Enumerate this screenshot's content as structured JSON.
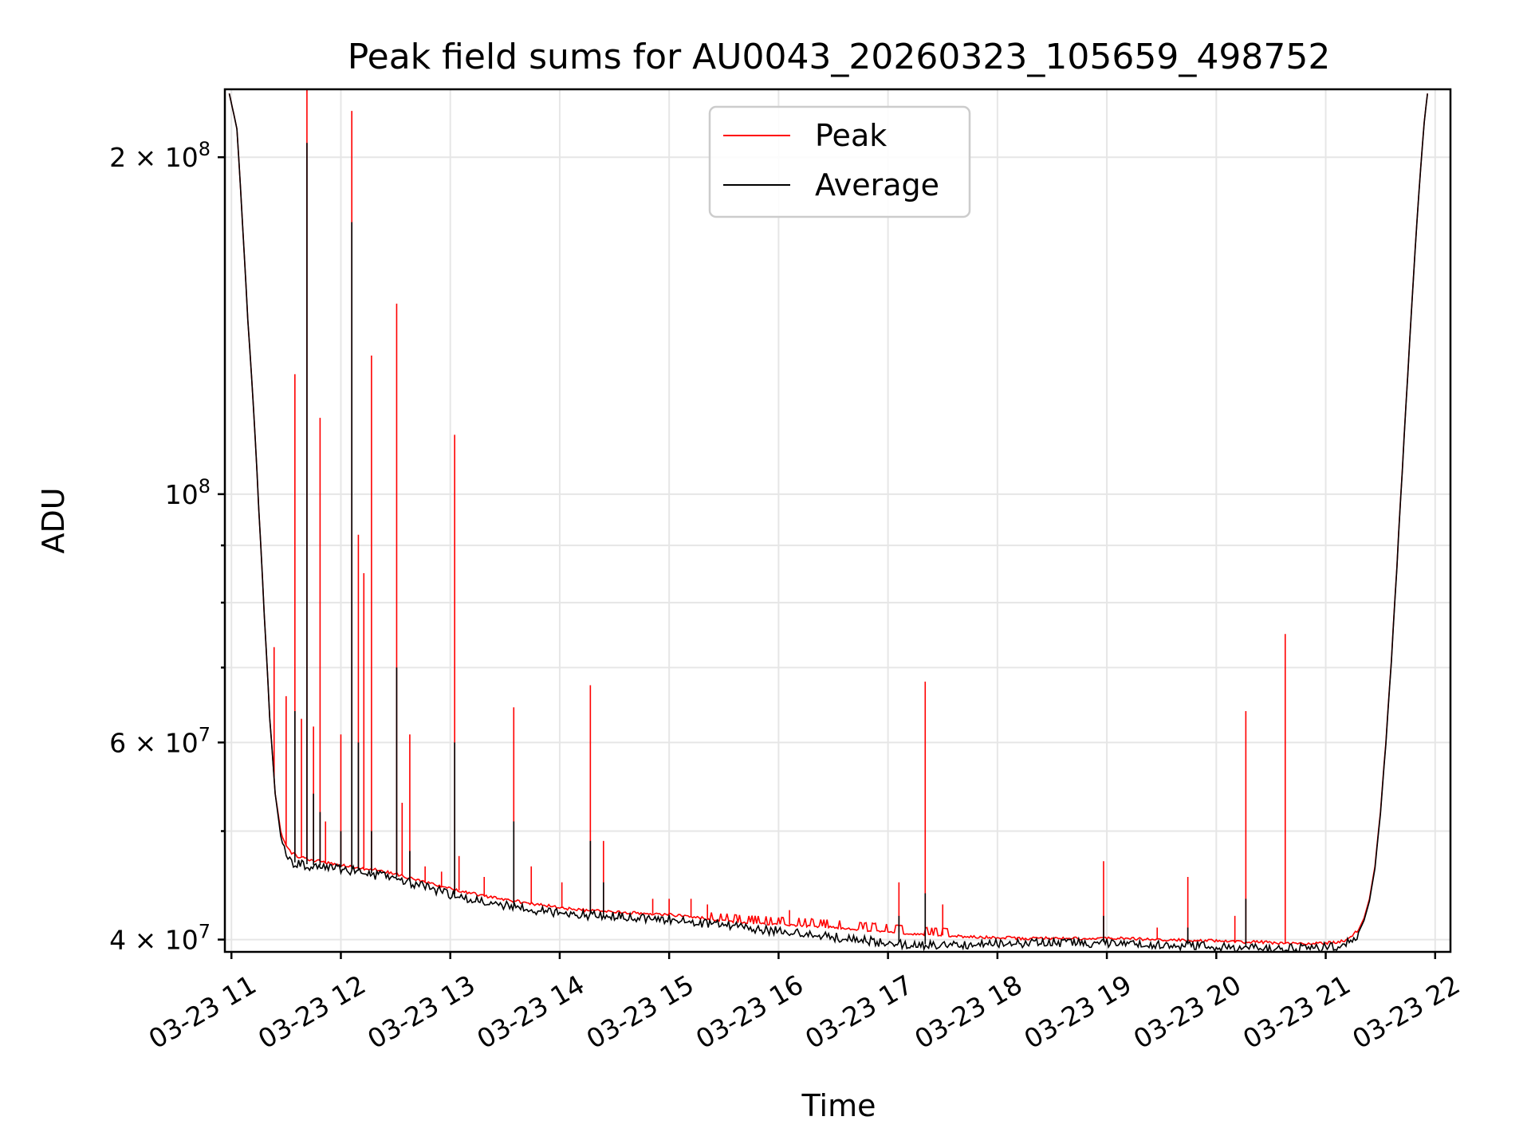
{
  "chart_data": {
    "type": "line",
    "title": "Peak field sums for AU0043_20260323_105659_498752",
    "xlabel": "Time",
    "ylabel": "ADU",
    "y_scale": "log",
    "ylim": [
      39000000,
      230000000
    ],
    "xlim_hours": [
      10.94,
      22.14
    ],
    "x_ticks": [
      {
        "hour": 11,
        "label": "03-23 11"
      },
      {
        "hour": 12,
        "label": "03-23 12"
      },
      {
        "hour": 13,
        "label": "03-23 13"
      },
      {
        "hour": 14,
        "label": "03-23 14"
      },
      {
        "hour": 15,
        "label": "03-23 15"
      },
      {
        "hour": 16,
        "label": "03-23 16"
      },
      {
        "hour": 17,
        "label": "03-23 17"
      },
      {
        "hour": 18,
        "label": "03-23 18"
      },
      {
        "hour": 19,
        "label": "03-23 19"
      },
      {
        "hour": 20,
        "label": "03-23 20"
      },
      {
        "hour": 21,
        "label": "03-23 21"
      },
      {
        "hour": 22,
        "label": "03-23 22"
      }
    ],
    "y_major_ticks": [
      {
        "value": 40000000,
        "mantissa": "4",
        "sep": " × ",
        "base": "10",
        "exp": "7"
      },
      {
        "value": 60000000,
        "mantissa": "6",
        "sep": " × ",
        "base": "10",
        "exp": "7"
      },
      {
        "value": 100000000,
        "mantissa": "",
        "sep": "",
        "base": "10",
        "exp": "8"
      },
      {
        "value": 200000000,
        "mantissa": "2",
        "sep": " × ",
        "base": "10",
        "exp": "8"
      }
    ],
    "y_minor_ticks": [
      50000000,
      70000000,
      80000000,
      90000000
    ],
    "grid": true,
    "legend": {
      "position": "upper-center"
    },
    "series": [
      {
        "name": "Peak",
        "color": "#ff0000",
        "points": [
          [
            10.98,
            228000000
          ],
          [
            11.05,
            212000000
          ],
          [
            11.1,
            175000000
          ],
          [
            11.15,
            143000000
          ],
          [
            11.2,
            120000000
          ],
          [
            11.25,
            97000000
          ],
          [
            11.3,
            78000000
          ],
          [
            11.35,
            63000000
          ],
          [
            11.4,
            54000000
          ],
          [
            11.45,
            50000000
          ],
          [
            11.5,
            48500000
          ],
          [
            11.55,
            47800000
          ],
          [
            11.6,
            47500000
          ],
          [
            11.7,
            47200000
          ],
          [
            11.8,
            47000000
          ],
          [
            11.9,
            46800000
          ],
          [
            12.0,
            46600000
          ],
          [
            12.1,
            46500000
          ],
          [
            12.2,
            46300000
          ],
          [
            12.3,
            46200000
          ],
          [
            12.4,
            46000000
          ],
          [
            12.5,
            45800000
          ],
          [
            12.6,
            45500000
          ],
          [
            12.7,
            45200000
          ],
          [
            12.8,
            45000000
          ],
          [
            12.9,
            44700000
          ],
          [
            13.0,
            44400000
          ],
          [
            13.1,
            44200000
          ],
          [
            13.2,
            44000000
          ],
          [
            13.3,
            43800000
          ],
          [
            13.4,
            43600000
          ],
          [
            13.5,
            43400000
          ],
          [
            13.6,
            43300000
          ],
          [
            13.7,
            43100000
          ],
          [
            13.8,
            43000000
          ],
          [
            13.9,
            42900000
          ],
          [
            14.0,
            42700000
          ],
          [
            14.2,
            42500000
          ],
          [
            14.4,
            42400000
          ],
          [
            14.6,
            42300000
          ],
          [
            14.8,
            42200000
          ],
          [
            15.0,
            42100000
          ],
          [
            15.2,
            41900000
          ],
          [
            15.4,
            41700000
          ],
          [
            15.6,
            41500000
          ],
          [
            15.8,
            41400000
          ],
          [
            16.0,
            41300000
          ],
          [
            16.2,
            41200000
          ],
          [
            16.4,
            41100000
          ],
          [
            16.6,
            41000000
          ],
          [
            16.8,
            40800000
          ],
          [
            17.0,
            40700000
          ],
          [
            17.2,
            40500000
          ],
          [
            17.4,
            40400000
          ],
          [
            17.6,
            40300000
          ],
          [
            17.8,
            40200000
          ],
          [
            18.0,
            40200000
          ],
          [
            18.2,
            40100000
          ],
          [
            18.4,
            40100000
          ],
          [
            18.6,
            40100000
          ],
          [
            18.8,
            40100000
          ],
          [
            19.0,
            40100000
          ],
          [
            19.2,
            40100000
          ],
          [
            19.4,
            40000000
          ],
          [
            19.6,
            40000000
          ],
          [
            19.8,
            39900000
          ],
          [
            20.0,
            39900000
          ],
          [
            20.2,
            39800000
          ],
          [
            20.4,
            39800000
          ],
          [
            20.6,
            39700000
          ],
          [
            20.8,
            39700000
          ],
          [
            21.0,
            39700000
          ],
          [
            21.1,
            39800000
          ],
          [
            21.2,
            40000000
          ],
          [
            21.3,
            40800000
          ],
          [
            21.35,
            41800000
          ],
          [
            21.4,
            43500000
          ],
          [
            21.45,
            46500000
          ],
          [
            21.5,
            52000000
          ],
          [
            21.55,
            60000000
          ],
          [
            21.6,
            71000000
          ],
          [
            21.65,
            86000000
          ],
          [
            21.7,
            105000000
          ],
          [
            21.75,
            128000000
          ],
          [
            21.8,
            155000000
          ],
          [
            21.85,
            185000000
          ],
          [
            21.9,
            215000000
          ],
          [
            21.93,
            228000000
          ]
        ],
        "spikes": [
          [
            11.39,
            73000000
          ],
          [
            11.5,
            66000000
          ],
          [
            11.58,
            128000000
          ],
          [
            11.64,
            63000000
          ],
          [
            11.69,
            232000000
          ],
          [
            11.75,
            62000000
          ],
          [
            11.81,
            117000000
          ],
          [
            11.86,
            51000000
          ],
          [
            12.0,
            61000000
          ],
          [
            12.1,
            220000000
          ],
          [
            12.16,
            92000000
          ],
          [
            12.21,
            85000000
          ],
          [
            12.28,
            133000000
          ],
          [
            12.51,
            148000000
          ],
          [
            12.56,
            53000000
          ],
          [
            12.63,
            61000000
          ],
          [
            12.77,
            46500000
          ],
          [
            12.92,
            46000000
          ],
          [
            13.04,
            113000000
          ],
          [
            13.08,
            47500000
          ],
          [
            13.31,
            45500000
          ],
          [
            13.58,
            64500000
          ],
          [
            13.74,
            46500000
          ],
          [
            14.02,
            45000000
          ],
          [
            14.28,
            67500000
          ],
          [
            14.4,
            49000000
          ],
          [
            14.85,
            43500000
          ],
          [
            15.0,
            43500000
          ],
          [
            15.2,
            43500000
          ],
          [
            15.35,
            43000000
          ],
          [
            16.1,
            42500000
          ],
          [
            17.1,
            45000000
          ],
          [
            17.34,
            68000000
          ],
          [
            17.5,
            43000000
          ],
          [
            18.97,
            47000000
          ],
          [
            19.46,
            41000000
          ],
          [
            19.74,
            45500000
          ],
          [
            20.17,
            42000000
          ],
          [
            20.27,
            64000000
          ],
          [
            20.63,
            75000000
          ]
        ]
      },
      {
        "name": "Average",
        "color": "#000000",
        "points": [
          [
            10.98,
            228000000
          ],
          [
            11.05,
            212000000
          ],
          [
            11.1,
            175000000
          ],
          [
            11.15,
            143000000
          ],
          [
            11.2,
            120000000
          ],
          [
            11.25,
            97000000
          ],
          [
            11.3,
            78000000
          ],
          [
            11.35,
            63000000
          ],
          [
            11.4,
            54000000
          ],
          [
            11.45,
            49500000
          ],
          [
            11.5,
            47800000
          ],
          [
            11.55,
            47000000
          ],
          [
            11.6,
            46800000
          ],
          [
            11.7,
            46700000
          ],
          [
            11.8,
            46600000
          ],
          [
            11.9,
            46500000
          ],
          [
            12.0,
            46400000
          ],
          [
            12.1,
            46200000
          ],
          [
            12.2,
            46000000
          ],
          [
            12.3,
            45800000
          ],
          [
            12.4,
            45700000
          ],
          [
            12.5,
            45500000
          ],
          [
            12.6,
            45200000
          ],
          [
            12.7,
            44900000
          ],
          [
            12.8,
            44600000
          ],
          [
            12.9,
            44300000
          ],
          [
            13.0,
            44000000
          ],
          [
            13.1,
            43800000
          ],
          [
            13.2,
            43600000
          ],
          [
            13.3,
            43400000
          ],
          [
            13.4,
            43200000
          ],
          [
            13.5,
            43000000
          ],
          [
            13.6,
            42900000
          ],
          [
            13.7,
            42700000
          ],
          [
            13.8,
            42600000
          ],
          [
            13.9,
            42500000
          ],
          [
            14.0,
            42400000
          ],
          [
            14.2,
            42200000
          ],
          [
            14.4,
            42100000
          ],
          [
            14.6,
            42000000
          ],
          [
            14.8,
            41900000
          ],
          [
            15.0,
            41800000
          ],
          [
            15.2,
            41600000
          ],
          [
            15.4,
            41400000
          ],
          [
            15.6,
            41200000
          ],
          [
            15.8,
            41000000
          ],
          [
            16.0,
            40800000
          ],
          [
            16.2,
            40600000
          ],
          [
            16.4,
            40400000
          ],
          [
            16.6,
            40200000
          ],
          [
            16.8,
            40000000
          ],
          [
            17.0,
            39800000
          ],
          [
            17.2,
            39700000
          ],
          [
            17.4,
            39600000
          ],
          [
            17.6,
            39600000
          ],
          [
            17.8,
            39700000
          ],
          [
            18.0,
            39800000
          ],
          [
            18.2,
            39800000
          ],
          [
            18.4,
            39800000
          ],
          [
            18.6,
            39800000
          ],
          [
            18.8,
            39800000
          ],
          [
            19.0,
            39800000
          ],
          [
            19.2,
            39700000
          ],
          [
            19.4,
            39700000
          ],
          [
            19.6,
            39600000
          ],
          [
            19.8,
            39600000
          ],
          [
            20.0,
            39500000
          ],
          [
            20.2,
            39500000
          ],
          [
            20.4,
            39400000
          ],
          [
            20.6,
            39400000
          ],
          [
            20.8,
            39400000
          ],
          [
            21.0,
            39500000
          ],
          [
            21.1,
            39600000
          ],
          [
            21.2,
            39800000
          ],
          [
            21.3,
            40600000
          ],
          [
            21.35,
            41600000
          ],
          [
            21.4,
            43300000
          ],
          [
            21.45,
            46300000
          ],
          [
            21.5,
            51800000
          ],
          [
            21.55,
            59800000
          ],
          [
            21.6,
            70800000
          ],
          [
            21.65,
            85800000
          ],
          [
            21.7,
            104800000
          ],
          [
            21.75,
            127800000
          ],
          [
            21.8,
            154800000
          ],
          [
            21.85,
            184800000
          ],
          [
            21.9,
            214800000
          ],
          [
            21.93,
            228000000
          ]
        ],
        "spikes": [
          [
            11.58,
            64000000
          ],
          [
            11.69,
            206000000
          ],
          [
            11.75,
            54000000
          ],
          [
            11.81,
            52000000
          ],
          [
            12.0,
            50000000
          ],
          [
            12.1,
            175000000
          ],
          [
            12.16,
            60000000
          ],
          [
            12.28,
            50000000
          ],
          [
            12.51,
            70000000
          ],
          [
            12.63,
            48000000
          ],
          [
            13.04,
            60000000
          ],
          [
            13.58,
            51000000
          ],
          [
            14.28,
            49000000
          ],
          [
            14.4,
            45000000
          ],
          [
            17.1,
            42000000
          ],
          [
            17.34,
            44000000
          ],
          [
            18.97,
            42000000
          ],
          [
            19.74,
            41000000
          ],
          [
            20.27,
            43500000
          ]
        ]
      }
    ]
  }
}
